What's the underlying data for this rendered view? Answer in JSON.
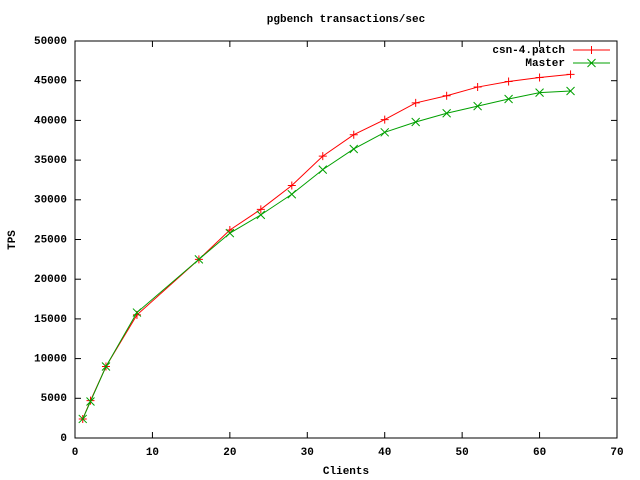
{
  "chart_data": {
    "type": "line",
    "title": "pgbench transactions/sec",
    "x_label": "Clients",
    "y_label": "TPS",
    "x": [
      1,
      2,
      4,
      8,
      16,
      20,
      24,
      28,
      32,
      36,
      40,
      44,
      48,
      52,
      56,
      60,
      64
    ],
    "series": [
      {
        "name": "csn-4.patch",
        "color": "#ff0000",
        "marker": "plus",
        "values": [
          2400,
          4700,
          9000,
          15500,
          22500,
          26200,
          28800,
          31800,
          35500,
          38200,
          40100,
          42200,
          43100,
          44200,
          44900,
          45400,
          45800
        ]
      },
      {
        "name": "Master",
        "color": "#00a000",
        "marker": "cross",
        "values": [
          2400,
          4600,
          9000,
          15800,
          22500,
          25800,
          28100,
          30700,
          33800,
          36400,
          38500,
          39800,
          40900,
          41800,
          42700,
          43500,
          43700
        ]
      }
    ],
    "xlim": [
      0,
      70
    ],
    "xticks": [
      0,
      10,
      20,
      30,
      40,
      50,
      60,
      70
    ],
    "ylim": [
      0,
      50000
    ],
    "yticks": [
      0,
      5000,
      10000,
      15000,
      20000,
      25000,
      30000,
      35000,
      40000,
      45000,
      50000
    ],
    "legend": "top-right"
  }
}
